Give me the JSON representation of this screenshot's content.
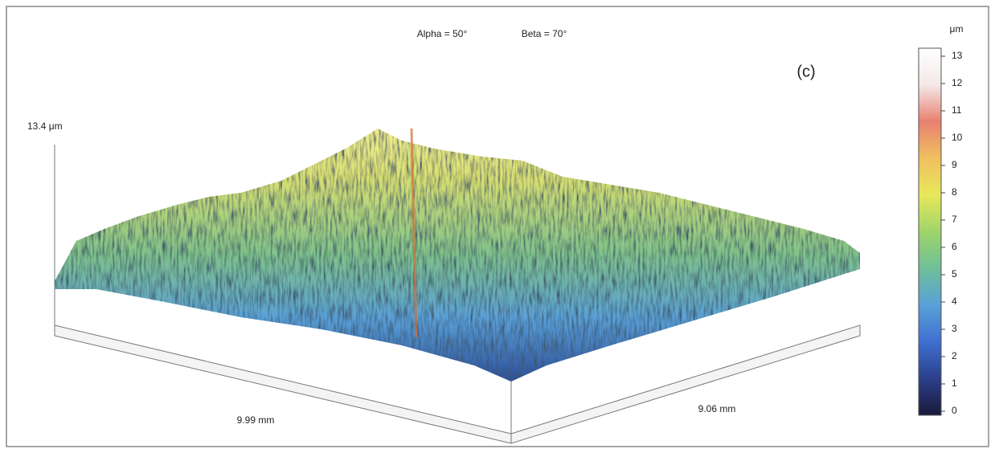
{
  "chart_data": {
    "type": "surface",
    "view_alpha": "Alpha = 50°",
    "view_beta": "Beta = 70°",
    "panel_label": "(c)",
    "z_label": "13.4 μm",
    "x_label": "9.99 mm",
    "y_label": "9.06 mm",
    "colorbar_unit": "μm",
    "colorbar_lim": [
      0,
      13
    ],
    "colorbar_ticks": [
      0,
      1,
      2,
      3,
      4,
      5,
      6,
      7,
      8,
      9,
      10,
      11,
      12,
      13
    ],
    "colormap": [
      "#1a1a3a",
      "#2c3f8c",
      "#3f6fd0",
      "#5aa0d8",
      "#6fbf9a",
      "#9fd46a",
      "#e8e85a",
      "#f0c060",
      "#e88070",
      "#f4e8e8",
      "#ffffff"
    ]
  }
}
